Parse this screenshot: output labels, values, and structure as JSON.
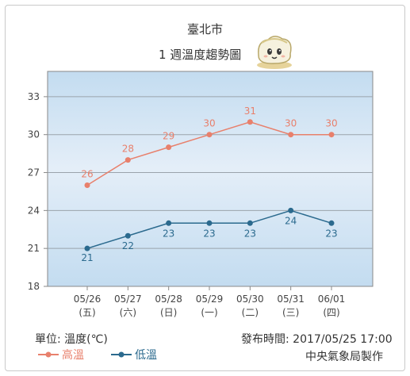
{
  "chart_data": {
    "type": "line",
    "title": "臺北市",
    "subtitle": "1 週溫度趨勢圖",
    "categories": [
      "05/26",
      "05/27",
      "05/28",
      "05/29",
      "05/30",
      "05/31",
      "06/01"
    ],
    "weekdays": [
      "(五)",
      "(六)",
      "(日)",
      "(一)",
      "(二)",
      "(三)",
      "(四)"
    ],
    "yticks": [
      18,
      21,
      24,
      27,
      30,
      33
    ],
    "ylim": [
      18,
      35
    ],
    "grid": true,
    "series": [
      {
        "name": "高溫",
        "color": "#e8806c",
        "values": [
          26,
          28,
          29,
          30,
          31,
          30,
          30
        ]
      },
      {
        "name": "低溫",
        "color": "#2b6a8e",
        "values": [
          21,
          22,
          23,
          23,
          23,
          24,
          23
        ]
      }
    ],
    "legend_position": "bottom-left"
  },
  "footer": {
    "unit": "單位: 溫度(℃)",
    "publish_time": "發布時間: 2017/05/25 17:00",
    "credit": "中央氣象局製作"
  },
  "icons": {
    "mascot": "cloud-mascot-icon"
  }
}
